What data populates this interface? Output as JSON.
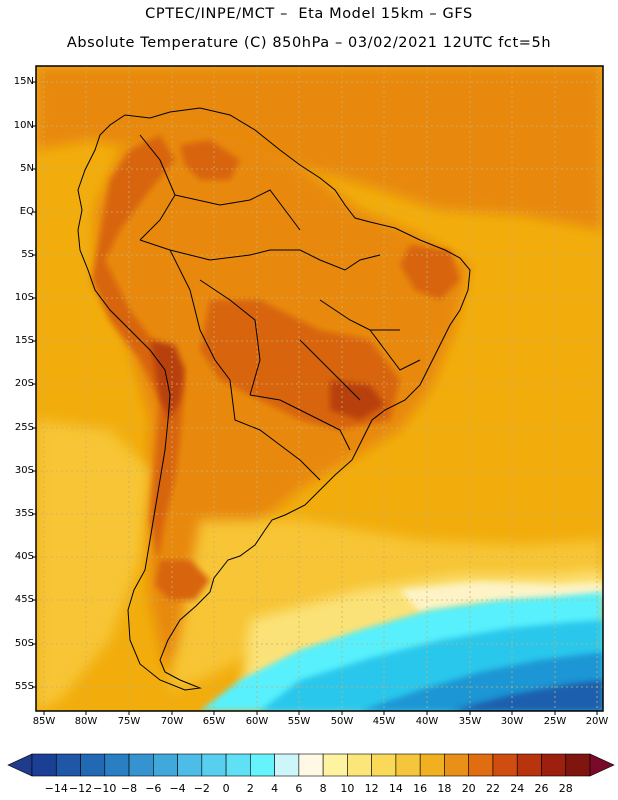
{
  "header": {
    "title_line1": "CPTEC/INPE/MCT –  Eta Model 15km – GFS",
    "title_line2": "Absolute Temperature (C) 850hPa – 03/02/2021 12UTC fct=5h"
  },
  "map": {
    "lat_labels": [
      "15N",
      "10N",
      "5N",
      "EQ",
      "5S",
      "10S",
      "15S",
      "20S",
      "25S",
      "30S",
      "35S",
      "40S",
      "45S",
      "50S",
      "55S"
    ],
    "lon_labels": [
      "85W",
      "80W",
      "75W",
      "70W",
      "65W",
      "60W",
      "55W",
      "50W",
      "45W",
      "40W",
      "35W",
      "30W",
      "25W",
      "20W"
    ],
    "colors": {
      "ocean_background": "#f2ad0c",
      "warm_orange": "#e8890f",
      "hot_orange": "#d8650f",
      "very_hot": "#b8400f",
      "cool_yellow": "#f7c534",
      "pale_yellow": "#fbe278",
      "cream": "#fdf3c6",
      "cyan": "#59f0fc",
      "light_blue": "#2cc7ec",
      "mid_blue": "#1a96d4",
      "deep_blue": "#1c5fae",
      "border_line": "#000000",
      "grid_line": "#c8b070"
    }
  },
  "colorbar": {
    "labels": [
      "-14",
      "-12",
      "-10",
      "-8",
      "-6",
      "-4",
      "-2",
      "0",
      "2",
      "4",
      "6",
      "8",
      "10",
      "12",
      "14",
      "16",
      "18",
      "20",
      "22",
      "24",
      "26",
      "28"
    ],
    "low_arrow_color": "#1f3c8c",
    "high_arrow_color": "#7a0a2a",
    "colors": [
      "#1c3f96",
      "#1f56a6",
      "#2269b4",
      "#2a7fc2",
      "#3594cf",
      "#41a8dc",
      "#4dbce6",
      "#58cfee",
      "#5fe0f5",
      "#66f4fc",
      "#cdf6fb",
      "#fff8e4",
      "#fdf3a0",
      "#fbe679",
      "#f9d957",
      "#f5c63c",
      "#f0b020",
      "#e89018",
      "#e06d12",
      "#cf4d10",
      "#b8340e",
      "#9c200d",
      "#7f150f"
    ]
  }
}
